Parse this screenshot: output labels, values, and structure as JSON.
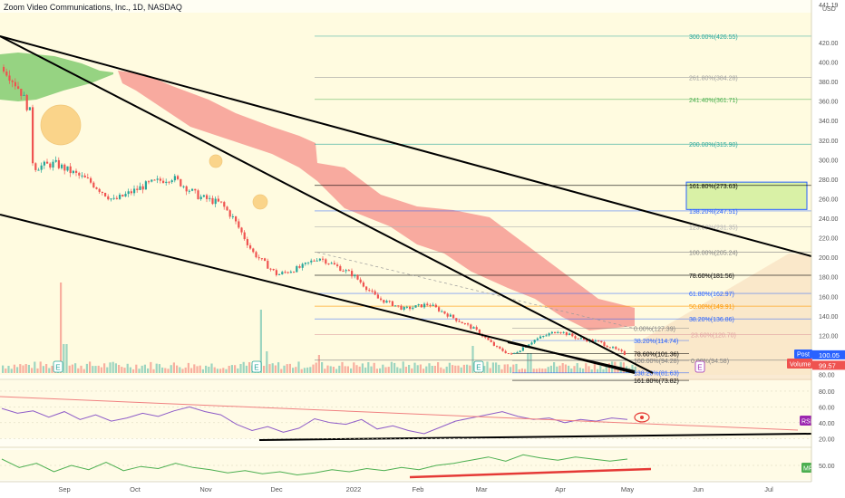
{
  "header": {
    "title": "Zoom Video Communications, Inc., 1D, NASDAQ"
  },
  "currency": "USD",
  "colors": {
    "bg": "#fffef3",
    "up": "#26a69a",
    "down": "#ef5350",
    "cloud_green": "#7cc96a",
    "cloud_red": "#f79b93",
    "trend": "#000000",
    "rsi_line": "#8e5cc8",
    "mf_line": "#4caf50",
    "rsi_trend": "#f08080",
    "mf_trend": "#e53935",
    "last_badge": "#2962ff",
    "close_badge": "#ef5350",
    "volume_badge": "#ef5350",
    "rsi_badge": "#9c27b0",
    "mf_badge": "#4caf50",
    "highlight_circle": "#f5a623",
    "fib_box": "#d9f1a6",
    "fib_box_border": "#2962ff"
  },
  "chart_data": {
    "type": "candlestick",
    "title": "Zoom Video Communications, Inc., 1D, NASDAQ",
    "x_ticks": [
      "Sep",
      "Oct",
      "Nov",
      "Dec",
      "2022",
      "Feb",
      "Mar",
      "Apr",
      "May",
      "Jun",
      "Jul"
    ],
    "y_ticks": [
      80,
      100,
      120,
      140,
      160,
      180,
      200,
      220,
      240,
      260,
      280,
      300,
      320,
      340,
      360,
      380,
      400,
      420,
      441.19
    ],
    "ylim": [
      73,
      442
    ],
    "price_path": [
      [
        "2021-08-20",
        395
      ],
      [
        "2021-08-27",
        370
      ],
      [
        "2021-08-31",
        347
      ],
      [
        "2021-09-01",
        292
      ],
      [
        "2021-09-10",
        296
      ],
      [
        "2021-09-24",
        278
      ],
      [
        "2021-10-04",
        258
      ],
      [
        "2021-10-18",
        275
      ],
      [
        "2021-10-28",
        282
      ],
      [
        "2021-11-08",
        262
      ],
      [
        "2021-11-17",
        255
      ],
      [
        "2021-11-22",
        240
      ],
      [
        "2021-11-30",
        205
      ],
      [
        "2021-12-10",
        182
      ],
      [
        "2021-12-20",
        190
      ],
      [
        "2021-12-27",
        200
      ],
      [
        "2022-01-10",
        182
      ],
      [
        "2022-01-20",
        158
      ],
      [
        "2022-01-31",
        147
      ],
      [
        "2022-02-10",
        152
      ],
      [
        "2022-02-20",
        138
      ],
      [
        "2022-03-01",
        126
      ],
      [
        "2022-03-10",
        107
      ],
      [
        "2022-03-16",
        100
      ],
      [
        "2022-03-25",
        115
      ],
      [
        "2022-04-04",
        125
      ],
      [
        "2022-04-12",
        117
      ],
      [
        "2022-04-21",
        113
      ],
      [
        "2022-05-02",
        100.05
      ]
    ],
    "last_price": "100.05",
    "close_price": "99.57",
    "volume_label": "Volume",
    "fib_extension_levels": [
      {
        "label": "300.00%(426.55)",
        "value": 426.55,
        "color": "#26a69a"
      },
      {
        "label": "261.80%(384.28)",
        "value": 384.28,
        "color": "#9e9e9e"
      },
      {
        "label": "241.40%(361.71)",
        "value": 361.71,
        "color": "#4caf50"
      },
      {
        "label": "200.00%(315.90)",
        "value": 315.9,
        "color": "#26a69a"
      },
      {
        "label": "161.80%(273.63)",
        "value": 273.63,
        "color": "#000000"
      },
      {
        "label": "138.20%(247.51)",
        "value": 247.51,
        "color": "#2962ff"
      },
      {
        "label": "123.60%(231.35)",
        "value": 231.35,
        "color": "#b0b0b0"
      },
      {
        "label": "100.00%(205.24)",
        "value": 205.24,
        "color": "#808080"
      },
      {
        "label": "78.60%(181.56)",
        "value": 181.56,
        "color": "#000000"
      },
      {
        "label": "61.80%(162.97)",
        "value": 162.97,
        "color": "#2962ff"
      },
      {
        "label": "50.00%(149.91)",
        "value": 149.91,
        "color": "#ff9800"
      },
      {
        "label": "38.20%(136.86)",
        "value": 136.86,
        "color": "#2962ff"
      },
      {
        "label": "23.60%(120.70)",
        "value": 120.7,
        "color": "#e0a0a0"
      },
      {
        "label": "0.00%(94.58)",
        "value": 94.58,
        "color": "#808080"
      }
    ],
    "fib_retracement_levels": [
      {
        "label": "0.00%(127.39)",
        "value": 127.39,
        "color": "#808080"
      },
      {
        "label": "38.20%(114.74)",
        "value": 114.74,
        "color": "#2962ff"
      },
      {
        "label": "78.60%(101.36)",
        "value": 101.36,
        "color": "#000000"
      },
      {
        "label": "100.00%(94.28)",
        "value": 94.28,
        "color": "#808080"
      },
      {
        "label": "138.20%(81.63)",
        "value": 81.63,
        "color": "#2962ff"
      },
      {
        "label": "161.80%(73.82)",
        "value": 73.82,
        "color": "#000000"
      }
    ],
    "earnings_marker": "E",
    "rsi": {
      "name": "RSI",
      "y_ticks": [
        80,
        60,
        40,
        20
      ],
      "ylim": [
        12,
        90
      ],
      "values": [
        58,
        52,
        55,
        47,
        54,
        44,
        50,
        42,
        46,
        52,
        48,
        55,
        60,
        54,
        50,
        38,
        30,
        35,
        28,
        33,
        45,
        40,
        38,
        44,
        32,
        36,
        30,
        26,
        34,
        42,
        46,
        50,
        54,
        48,
        44,
        46,
        40,
        44,
        42,
        46,
        44
      ]
    },
    "mf": {
      "name": "MF",
      "y_ticks": [
        50
      ],
      "values": [
        56,
        48,
        52,
        44,
        50,
        46,
        53,
        45,
        49,
        47,
        52,
        48,
        46,
        43,
        45,
        42,
        44,
        41,
        43,
        46,
        44,
        47,
        45,
        48,
        46,
        50,
        52,
        55,
        58,
        54,
        60,
        57,
        55,
        58,
        56,
        54,
        56
      ]
    }
  }
}
